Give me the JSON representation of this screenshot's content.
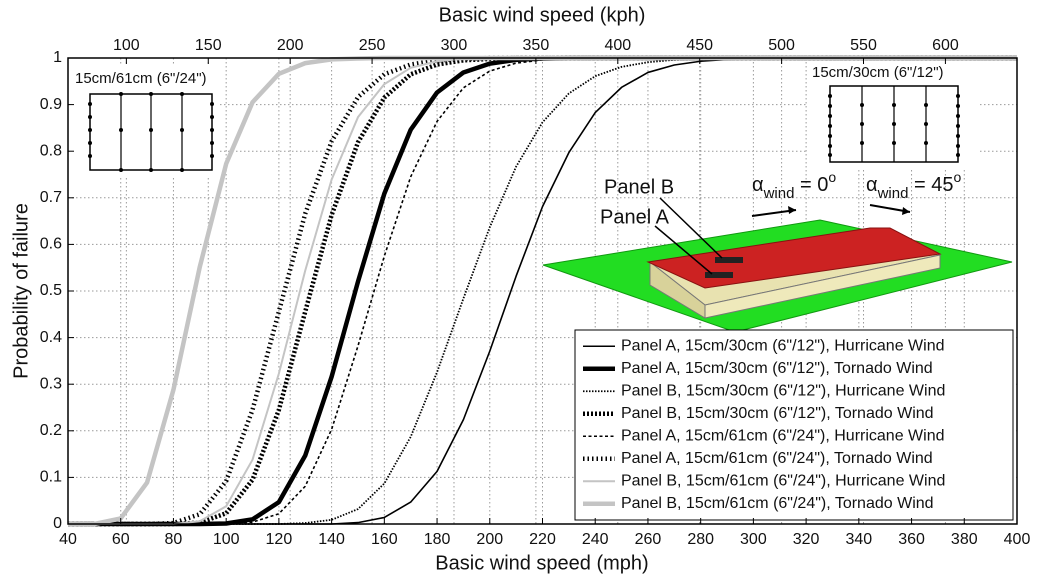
{
  "chart_data": {
    "type": "line",
    "x_label": "Basic wind speed (mph)",
    "x2_label": "Basic wind speed (kph)",
    "y_label": "Probability of failure",
    "x": [
      40,
      50,
      60,
      70,
      80,
      90,
      100,
      110,
      120,
      130,
      140,
      150,
      160,
      170,
      180,
      190,
      200,
      210,
      220,
      230,
      240,
      250,
      260,
      270,
      280,
      290,
      300,
      310,
      320,
      330,
      340,
      350,
      360,
      370,
      380,
      390,
      400
    ],
    "xlim": [
      40,
      400
    ],
    "xticks": [
      40,
      60,
      80,
      100,
      120,
      140,
      160,
      180,
      200,
      220,
      240,
      260,
      280,
      300,
      320,
      340,
      360,
      380,
      400
    ],
    "x2lim": [
      64.37,
      643.7
    ],
    "x2ticks": [
      100,
      150,
      200,
      250,
      300,
      350,
      400,
      450,
      500,
      550,
      600
    ],
    "ylim": [
      0,
      1
    ],
    "yticks": [
      0,
      0.1,
      0.2,
      0.3,
      0.4,
      0.5,
      0.6,
      0.7,
      0.8,
      0.9,
      1
    ],
    "grid": true,
    "legend": "lower right",
    "series": [
      {
        "name": "Panel A, 15cm/30cm (6\"/12\"), Hurricane Wind",
        "color": "#000000",
        "width": 1.6,
        "dash": "none",
        "values": [
          0,
          0,
          0,
          0,
          0,
          0,
          0,
          0,
          0,
          0,
          0,
          0.003,
          0.014,
          0.047,
          0.113,
          0.224,
          0.371,
          0.532,
          0.681,
          0.797,
          0.883,
          0.937,
          0.969,
          0.985,
          0.993,
          0.997,
          0.999,
          1,
          1,
          1,
          1,
          1,
          1,
          1,
          1,
          1,
          1
        ]
      },
      {
        "name": "Panel A, 15cm/30cm (6\"/12\"), Tornado Wind",
        "color": "#000000",
        "width": 4.5,
        "dash": "none",
        "values": [
          0,
          0,
          0,
          0,
          0,
          0,
          0.001,
          0.01,
          0.047,
          0.147,
          0.316,
          0.52,
          0.709,
          0.846,
          0.926,
          0.969,
          0.988,
          0.996,
          0.999,
          1,
          1,
          1,
          1,
          1,
          1,
          1,
          1,
          1,
          1,
          1,
          1,
          1,
          1,
          1,
          1,
          1,
          1
        ]
      },
      {
        "name": "Panel B, 15cm/30cm (6\"/12\"), Hurricane Wind",
        "color": "#000000",
        "width": 1.8,
        "dash": "1.5,1.5",
        "values": [
          0,
          0,
          0,
          0,
          0,
          0,
          0,
          0,
          0,
          0.002,
          0.009,
          0.032,
          0.087,
          0.187,
          0.326,
          0.484,
          0.637,
          0.767,
          0.862,
          0.924,
          0.961,
          0.981,
          0.991,
          0.996,
          0.998,
          1,
          1,
          1,
          1,
          1,
          1,
          1,
          1,
          1,
          1,
          1,
          1
        ]
      },
      {
        "name": "Panel B, 15cm/30cm (6\"/12\"), Tornado Wind",
        "color": "#000000",
        "width": 4.5,
        "dash": "2,2",
        "values": [
          0,
          0,
          0,
          0,
          0,
          0.003,
          0.023,
          0.095,
          0.245,
          0.456,
          0.663,
          0.819,
          0.915,
          0.965,
          0.986,
          0.995,
          0.998,
          1,
          1,
          1,
          1,
          1,
          1,
          1,
          1,
          1,
          1,
          1,
          1,
          1,
          1,
          1,
          1,
          1,
          1,
          1,
          1
        ]
      },
      {
        "name": "Panel A, 15cm/61cm (6\"/24\"), Hurricane Wind",
        "color": "#000000",
        "width": 1.6,
        "dash": "3,2.5",
        "values": [
          0,
          0,
          0,
          0,
          0,
          0,
          0,
          0.004,
          0.022,
          0.081,
          0.203,
          0.382,
          0.575,
          0.745,
          0.864,
          0.936,
          0.972,
          0.989,
          0.996,
          0.999,
          1,
          1,
          1,
          1,
          1,
          1,
          1,
          1,
          1,
          1,
          1,
          1,
          1,
          1,
          1,
          1,
          1
        ]
      },
      {
        "name": "Panel A, 15cm/61cm (6\"/24\"), Tornado Wind",
        "color": "#000000",
        "width": 4.5,
        "dash": "1.5,3",
        "values": [
          0,
          0,
          0,
          0,
          0.002,
          0.021,
          0.092,
          0.245,
          0.456,
          0.666,
          0.821,
          0.916,
          0.965,
          0.986,
          0.995,
          0.998,
          1,
          1,
          1,
          1,
          1,
          1,
          1,
          1,
          1,
          1,
          1,
          1,
          1,
          1,
          1,
          1,
          1,
          1,
          1,
          1,
          1
        ]
      },
      {
        "name": "Panel B, 15cm/61cm (6\"/24\"), Hurricane Wind",
        "color": "#c4c4c4",
        "width": 2,
        "dash": "none",
        "values": [
          0,
          0,
          0,
          0,
          0,
          0.006,
          0.038,
          0.138,
          0.323,
          0.544,
          0.739,
          0.873,
          0.944,
          0.979,
          0.993,
          0.998,
          1,
          1,
          1,
          1,
          1,
          1,
          1,
          1,
          1,
          1,
          1,
          1,
          1,
          1,
          1,
          1,
          1,
          1,
          1,
          1,
          1
        ]
      },
      {
        "name": "Panel B, 15cm/61cm (6\"/24\"), Tornado Wind",
        "color": "#c4c4c4",
        "width": 4.5,
        "dash": "none",
        "values": [
          0,
          0,
          0.012,
          0.089,
          0.288,
          0.552,
          0.773,
          0.905,
          0.966,
          0.989,
          0.997,
          0.999,
          1,
          1,
          1,
          1,
          1,
          1,
          1,
          1,
          1,
          1,
          1,
          1,
          1,
          1,
          1,
          1,
          1,
          1,
          1,
          1,
          1,
          1,
          1,
          1,
          1
        ]
      }
    ],
    "annotations": {
      "inset_left": "15cm/61cm (6\"/24\")",
      "inset_right": "15cm/30cm (6\"/12\")",
      "panel_b": "Panel B",
      "panel_a": "Panel A",
      "alpha_0": {
        "base": "α",
        "sub": "wind",
        "rest": " = 0",
        "sup": "o"
      },
      "alpha_45": {
        "base": "α",
        "sub": "wind",
        "rest": " = 45",
        "sup": "o"
      }
    }
  }
}
